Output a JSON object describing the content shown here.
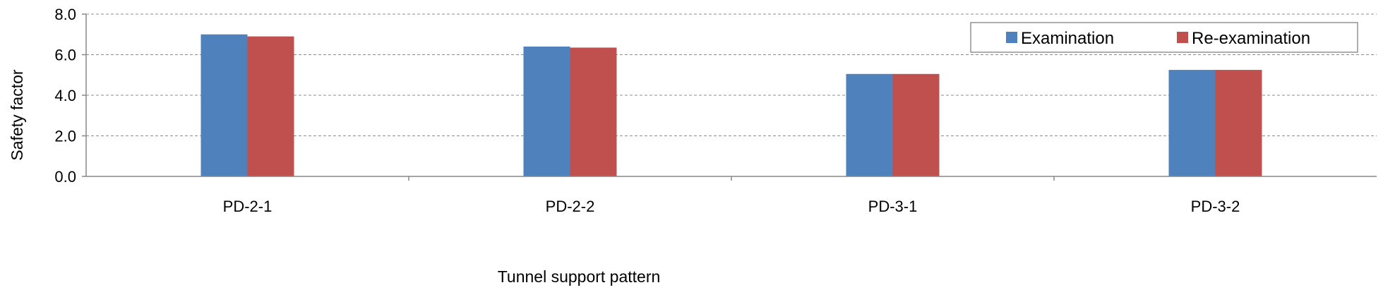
{
  "chart_data": {
    "type": "bar",
    "title": "",
    "xlabel": "Tunnel support pattern",
    "ylabel": "Safety factor",
    "categories": [
      "PD-2-1",
      "PD-2-2",
      "PD-3-1",
      "PD-3-2"
    ],
    "series": [
      {
        "name": "Examination",
        "color": "#4F81BD",
        "values": [
          7.0,
          6.4,
          5.05,
          5.25
        ]
      },
      {
        "name": "Re-examination",
        "color": "#C0504D",
        "values": [
          6.9,
          6.35,
          5.05,
          5.25
        ]
      }
    ],
    "ylim": [
      0,
      8
    ],
    "yticks": [
      "0.0",
      "2.0",
      "4.0",
      "6.0",
      "8.0"
    ],
    "ytick_values": [
      0,
      2,
      4,
      6,
      8
    ],
    "grid": true,
    "legend_position": "top-right"
  }
}
